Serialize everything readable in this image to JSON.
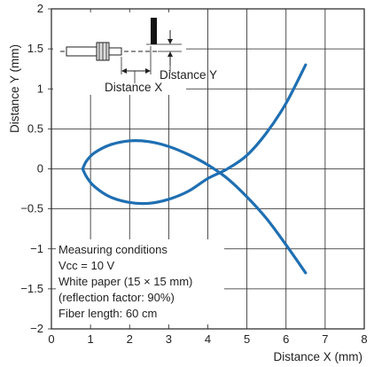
{
  "chart_data": {
    "type": "line",
    "xlabel": "Distance X (mm)",
    "ylabel": "Distance Y (mm)",
    "xlim": [
      0,
      8
    ],
    "ylim": [
      -2,
      2
    ],
    "x_ticks": [
      "0",
      "1",
      "2",
      "3",
      "4",
      "5",
      "6",
      "7",
      "8"
    ],
    "y_ticks": [
      "2",
      "1.5",
      "1",
      "0.5",
      "0",
      "−0.5",
      "−1",
      "−1.5",
      "−2"
    ],
    "grid": true,
    "series": [
      {
        "values": [
          {
            "x": 0.8,
            "y": 0.0
          },
          {
            "x": 0.9,
            "y": 0.1
          },
          {
            "x": 1.1,
            "y": 0.2
          },
          {
            "x": 1.5,
            "y": 0.3
          },
          {
            "x": 2.0,
            "y": 0.35
          },
          {
            "x": 2.5,
            "y": 0.34
          },
          {
            "x": 3.0,
            "y": 0.28
          },
          {
            "x": 3.5,
            "y": 0.18
          },
          {
            "x": 4.0,
            "y": 0.05
          },
          {
            "x": 4.5,
            "y": -0.12
          },
          {
            "x": 5.0,
            "y": -0.35
          },
          {
            "x": 5.5,
            "y": -0.62
          },
          {
            "x": 6.0,
            "y": -0.95
          },
          {
            "x": 6.5,
            "y": -1.3
          }
        ]
      },
      {
        "values": [
          {
            "x": 0.8,
            "y": 0.0
          },
          {
            "x": 0.9,
            "y": -0.1
          },
          {
            "x": 1.1,
            "y": -0.22
          },
          {
            "x": 1.5,
            "y": -0.35
          },
          {
            "x": 2.0,
            "y": -0.42
          },
          {
            "x": 2.5,
            "y": -0.43
          },
          {
            "x": 3.0,
            "y": -0.38
          },
          {
            "x": 3.5,
            "y": -0.28
          },
          {
            "x": 4.0,
            "y": -0.12
          },
          {
            "x": 4.5,
            "y": 0.0
          },
          {
            "x": 5.0,
            "y": 0.17
          },
          {
            "x": 5.5,
            "y": 0.45
          },
          {
            "x": 6.0,
            "y": 0.82
          },
          {
            "x": 6.5,
            "y": 1.3
          }
        ]
      }
    ],
    "series_color": "#1f6fb2",
    "inset": {
      "distance_x_label": "Distance X",
      "distance_y_label": "Distance Y"
    },
    "annotation_lines": [
      "Measuring conditions",
      "Vcc = 10 V",
      "White paper (15 × 15 mm)",
      "(reflection factor: 90%)",
      "Fiber length: 60 cm"
    ]
  }
}
